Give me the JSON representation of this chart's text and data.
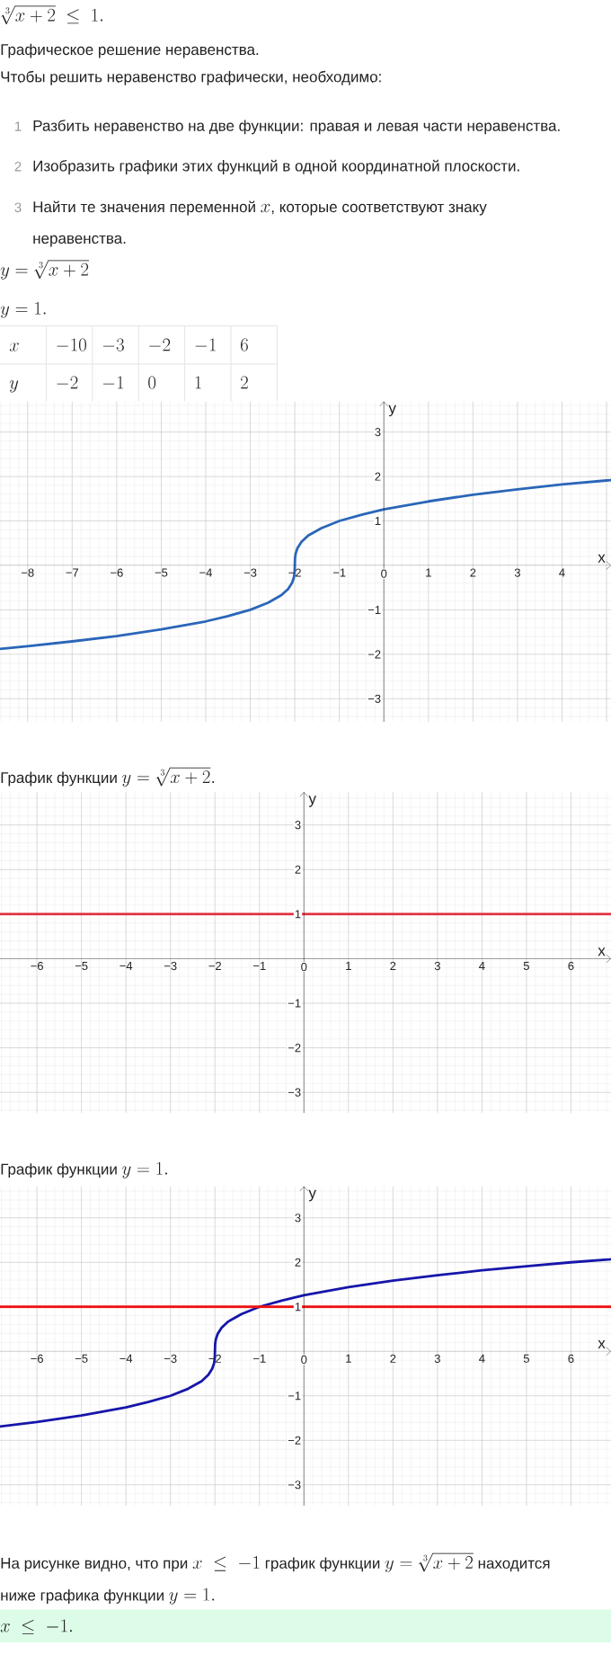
{
  "chart_data": [
    {
      "type": "other",
      "title": "\\sqrt[3]{x+2}\\ \\leq\\ 1.",
      "annotations": [
        "Графическое решение неравенства.",
        "Чтобы решить неравенство графически, необходимо:",
        "1",
        "Разбить неравенство на две функции: правая и левая части неравенства.",
        "2",
        "Изобразить графики этих функций в одной координатной плоскости.",
        "3",
        "Найти те значения переменной",
        "x",
        ", которые соответствуют знаку",
        "неравенства.",
        "y = \\sqrt[3]{x+2}",
        "y = 1."
      ]
    },
    {
      "type": "line",
      "xlabel": "x",
      "ylabel": "y",
      "xlim": [
        -8.62,
        5.1
      ],
      "ylim": [
        -3.52,
        3.69
      ],
      "xticks": [
        {
          "value": -8,
          "label": "−8"
        },
        {
          "value": -7,
          "label": "−7"
        },
        {
          "value": -6,
          "label": "−6"
        },
        {
          "value": -5,
          "label": "−5"
        },
        {
          "value": -4,
          "label": "−4"
        },
        {
          "value": -3,
          "label": "−3"
        },
        {
          "value": -2,
          "label": "−2"
        },
        {
          "value": -1,
          "label": "−1"
        },
        0,
        1,
        2,
        3,
        4,
        {
          "value": 5,
          "label": null
        }
      ],
      "yticks": [
        {
          "value": -3,
          "label": "−3"
        },
        {
          "value": -2,
          "label": "−2"
        },
        {
          "value": -1,
          "label": "−1"
        },
        1,
        2,
        3
      ],
      "grid": true,
      "series": [
        {
          "color": "#2a66b8",
          "x": [
            -8.62,
            -8,
            -7,
            -6,
            -5,
            -4,
            -3.5,
            -3,
            -2.6,
            -2.3,
            -2.15,
            -2.06,
            -2.02,
            -2.005,
            -2,
            -1.995,
            -1.98,
            -1.94,
            -1.85,
            -1.7,
            -1.4,
            -1,
            -0.5,
            0,
            1,
            2,
            3,
            4,
            5,
            5.1
          ],
          "values": [
            -1.88,
            -1.82,
            -1.71,
            -1.59,
            -1.44,
            -1.26,
            -1.14,
            -1,
            -0.84,
            -0.67,
            -0.53,
            -0.39,
            -0.27,
            -0.17,
            0,
            0.17,
            0.27,
            0.39,
            0.53,
            0.67,
            0.84,
            1,
            1.14,
            1.26,
            1.44,
            1.59,
            1.71,
            1.82,
            1.91,
            1.92
          ]
        }
      ],
      "annotations": [
        "x",
        "-10",
        "-3",
        "-2",
        "-1",
        "6",
        "y",
        "-2",
        "-1",
        "0",
        "1",
        "2",
        "График функции",
        "y = \\sqrt[3]{x+2}."
      ]
    },
    {
      "type": "line",
      "xlabel": "x",
      "ylabel": "y",
      "xlim": [
        -6.83,
        6.9
      ],
      "ylim": [
        -3.46,
        3.74
      ],
      "xticks": [
        {
          "value": -6,
          "label": "−6"
        },
        {
          "value": -5,
          "label": "−5"
        },
        {
          "value": -4,
          "label": "−4"
        },
        {
          "value": -3,
          "label": "−3"
        },
        {
          "value": -2,
          "label": "−2"
        },
        {
          "value": -1,
          "label": "−1"
        },
        0,
        1,
        2,
        3,
        4,
        5,
        6
      ],
      "yticks": [
        {
          "value": -3,
          "label": "−3"
        },
        {
          "value": -2,
          "label": "−2"
        },
        {
          "value": -1,
          "label": "−1"
        },
        1,
        2,
        3
      ],
      "grid": true,
      "series": [
        {
          "color": "#de2f3d",
          "x": [
            -6.83,
            6.9
          ],
          "values": [
            1,
            1
          ]
        }
      ],
      "annotations": [
        "График функции",
        "y = 1."
      ]
    },
    {
      "type": "line",
      "xlabel": "x",
      "ylabel": "y",
      "xlim": [
        -6.83,
        6.9
      ],
      "ylim": [
        -3.47,
        3.71
      ],
      "xticks": [
        {
          "value": -6,
          "label": "−6"
        },
        {
          "value": -5,
          "label": "−5"
        },
        {
          "value": -4,
          "label": "−4"
        },
        {
          "value": -3,
          "label": "−3"
        },
        {
          "value": -2,
          "label": "−2"
        },
        {
          "value": -1,
          "label": "−1"
        },
        0,
        1,
        2,
        3,
        4,
        5,
        6
      ],
      "yticks": [
        {
          "value": -3,
          "label": "−3"
        },
        {
          "value": -2,
          "label": "−2"
        },
        {
          "value": -1,
          "label": "−1"
        },
        1,
        2,
        3
      ],
      "grid": true,
      "series": [
        {
          "color": "#1616aa",
          "x": [
            -6.83,
            -6,
            -5,
            -4,
            -3.5,
            -3,
            -2.6,
            -2.3,
            -2.15,
            -2.06,
            -2.02,
            -2.005,
            -1.995,
            -1.98,
            -1.94,
            -1.85,
            -1.7,
            -1.4,
            -1,
            -0.5,
            0,
            1,
            2,
            3,
            4,
            5,
            6,
            6.9
          ],
          "values": [
            -1.69,
            -1.59,
            -1.44,
            -1.26,
            -1.14,
            -1,
            -0.84,
            -0.67,
            -0.53,
            -0.39,
            -0.27,
            -0.17,
            0.17,
            0.27,
            0.39,
            0.53,
            0.67,
            0.84,
            1,
            1.14,
            1.26,
            1.44,
            1.59,
            1.71,
            1.82,
            1.91,
            2,
            2.07
          ]
        },
        {
          "color": "#ee1111",
          "x": [
            -6.83,
            6.9
          ],
          "values": [
            1,
            1
          ]
        }
      ]
    },
    {
      "type": "other",
      "annotations": [
        "На рисунке видно, что при",
        "x\\ \\leq\\ -1",
        "график функции",
        "y = \\sqrt[3]{x+2}",
        "находится",
        "ниже графика функции",
        "y = 1.",
        "x\\ \\leq\\ -1."
      ]
    }
  ]
}
